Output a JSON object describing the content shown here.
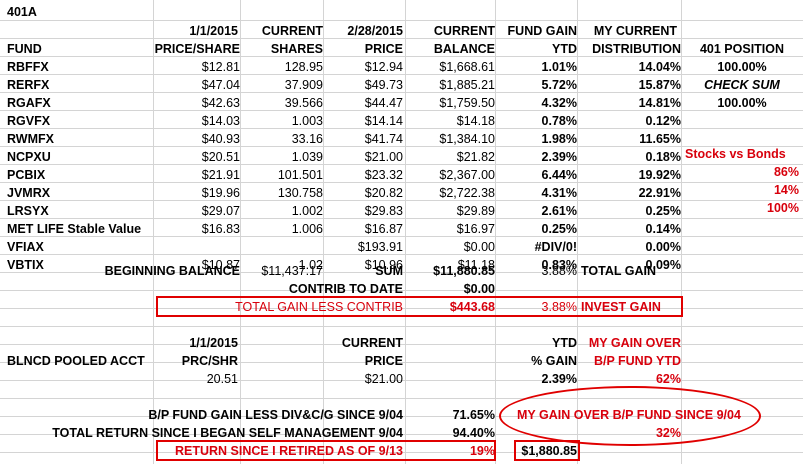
{
  "title": "401A",
  "header1": {
    "price_date": "1/1/2015",
    "current": "CURRENT",
    "price_date2": "2/28/2015",
    "current2": "CURRENT",
    "fund_gain": "FUND GAIN",
    "my_current": "MY CURRENT"
  },
  "header2": {
    "fund": "FUND",
    "price_share": "PRICE/SHARE",
    "shares": "SHARES",
    "price": "PRICE",
    "balance": "BALANCE",
    "ytd": "YTD",
    "distribution": "DISTRIBUTION",
    "position": "401 POSITION"
  },
  "funds": [
    {
      "fund": "RBFFX",
      "price_share": "$12.81",
      "shares": "128.95",
      "price": "$12.94",
      "balance": "$1,668.61",
      "ytd": "1.01%",
      "dist": "14.04%"
    },
    {
      "fund": "RERFX",
      "price_share": "$47.04",
      "shares": "37.909",
      "price": "$49.73",
      "balance": "$1,885.21",
      "ytd": "5.72%",
      "dist": "15.87%"
    },
    {
      "fund": "RGAFX",
      "price_share": "$42.63",
      "shares": "39.566",
      "price": "$44.47",
      "balance": "$1,759.50",
      "ytd": "4.32%",
      "dist": "14.81%"
    },
    {
      "fund": "RGVFX",
      "price_share": "$14.03",
      "shares": "1.003",
      "price": "$14.14",
      "balance": "$14.18",
      "ytd": "0.78%",
      "dist": "0.12%"
    },
    {
      "fund": "RWMFX",
      "price_share": "$40.93",
      "shares": "33.16",
      "price": "$41.74",
      "balance": "$1,384.10",
      "ytd": "1.98%",
      "dist": "11.65%"
    },
    {
      "fund": "NCPXU",
      "price_share": "$20.51",
      "shares": "1.039",
      "price": "$21.00",
      "balance": "$21.82",
      "ytd": "2.39%",
      "dist": "0.18%"
    },
    {
      "fund": "PCBIX",
      "price_share": "$21.91",
      "shares": "101.501",
      "price": "$23.32",
      "balance": "$2,367.00",
      "ytd": "6.44%",
      "dist": "19.92%"
    },
    {
      "fund": "JVMRX",
      "price_share": "$19.96",
      "shares": "130.758",
      "price": "$20.82",
      "balance": "$2,722.38",
      "ytd": "4.31%",
      "dist": "22.91%"
    },
    {
      "fund": "LRSYX",
      "price_share": "$29.07",
      "shares": "1.002",
      "price": "$29.83",
      "balance": "$29.89",
      "ytd": "2.61%",
      "dist": "0.25%"
    },
    {
      "fund": "MET LIFE Stable Value",
      "price_share": "$16.83",
      "shares": "1.006",
      "price": "$16.87",
      "balance": "$16.97",
      "ytd": "0.25%",
      "dist": "0.14%"
    },
    {
      "fund": "VFIAX",
      "price_share": "",
      "shares": "",
      "price": "$193.91",
      "balance": "$0.00",
      "ytd": "#DIV/0!",
      "dist": "0.00%"
    },
    {
      "fund": "VBTIX",
      "price_share": "$10.87",
      "shares": "1.02",
      "price": "$10.96",
      "balance": "$11.18",
      "ytd": "0.83%",
      "dist": "0.09%"
    }
  ],
  "position_side": {
    "position_value": "100.00%",
    "check_sum": "CHECK SUM",
    "check_value": "100.00%",
    "stocks_vs_bonds": "Stocks vs Bonds",
    "stocks_pct": "86%",
    "bonds_pct": "14%",
    "total_pct": "100%"
  },
  "summary": {
    "beginning_balance_label": "BEGINNING BALANCE",
    "beginning_balance": "$11,437.17",
    "sum_label": "SUM",
    "sum_value": "$11,880.85",
    "total_gain_pct": "3.88%",
    "total_gain_label": "TOTAL GAIN",
    "contrib_label": "CONTRIB TO DATE",
    "contrib_value": "$0.00",
    "gain_less_contrib_label": "TOTAL GAIN LESS CONTRIB",
    "gain_less_contrib_value": "$443.68",
    "invest_gain_pct": "3.88%",
    "invest_gain_label": "INVEST GAIN"
  },
  "pooled": {
    "date": "1/1/2015",
    "current": "CURRENT",
    "ytd": "YTD",
    "my_gain_over": "MY GAIN OVER",
    "label": "BLNCD POOLED ACCT",
    "prc_shr": "PRC/SHR",
    "price": "PRICE",
    "pct_gain": "% GAIN",
    "bp_fund_ytd": "B/P FUND YTD",
    "prc_value": "20.51",
    "price_value": "$21.00",
    "gain_value": "2.39%",
    "my_gain_value": "62%"
  },
  "longterm": {
    "bp_gain_label": "B/P FUND GAIN LESS DIV&C/G SINCE 9/04",
    "bp_gain_value": "71.65%",
    "my_gain_over_since": "MY GAIN OVER  B/P FUND  SINCE 9/04",
    "total_return_label": "TOTAL RETURN SINCE I BEGAN SELF MANAGEMENT 9/04",
    "total_return_value": "94.40%",
    "my_gain_since_value": "32%",
    "retired_label": "RETURN SINCE I RETIRED AS OF 9/13",
    "retired_pct": "19%",
    "retired_value": "$1,880.85"
  }
}
